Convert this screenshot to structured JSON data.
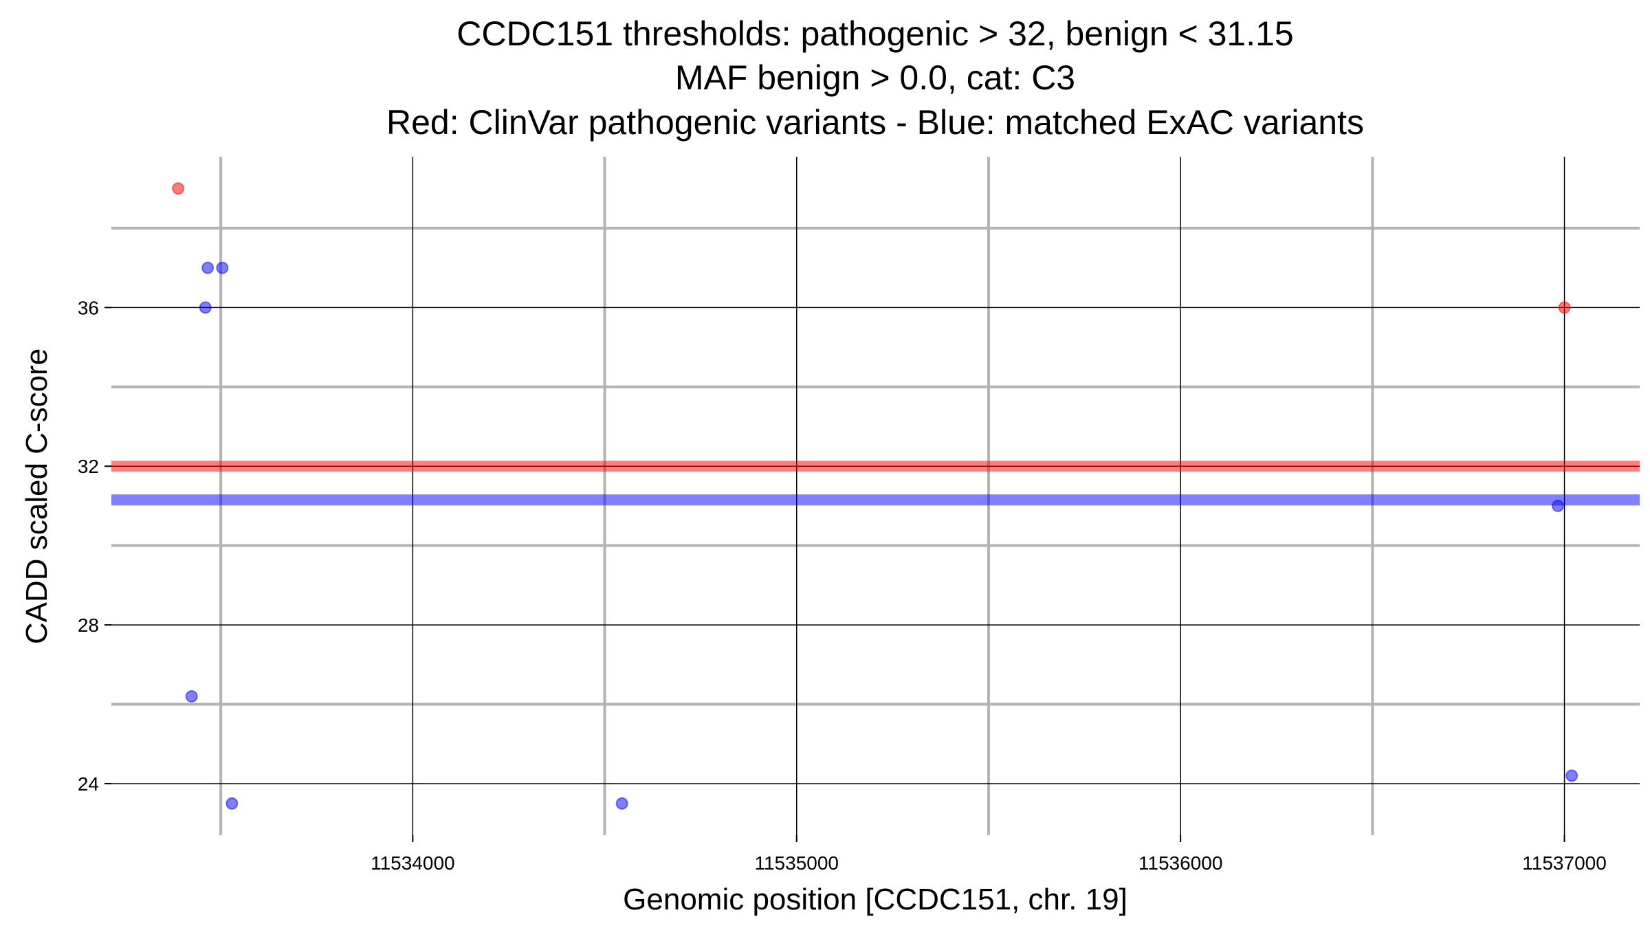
{
  "chart_data": {
    "type": "scatter",
    "title": [
      "CCDC151 thresholds: pathogenic > 32, benign < 31.15",
      "MAF benign > 0.0, cat: C3",
      "Red: ClinVar pathogenic variants - Blue: matched ExAC variants"
    ],
    "xlabel": "Genomic position [CCDC151, chr. 19]",
    "ylabel": "CADD scaled C-score",
    "xlim": [
      11533215,
      11537196
    ],
    "ylim": [
      22.7,
      39.8
    ],
    "x_ticks": [
      11534000,
      11535000,
      11536000,
      11537000
    ],
    "x_tick_labels": [
      "11534000",
      "11535000",
      "11536000",
      "11537000"
    ],
    "x_minor": [
      11533500,
      11534500,
      11535500,
      11536500
    ],
    "y_ticks": [
      24,
      28,
      32,
      36
    ],
    "y_tick_labels": [
      "24",
      "28",
      "32",
      "36"
    ],
    "y_minor": [
      26,
      30,
      34,
      38
    ],
    "grid": true,
    "thresholds": [
      {
        "name": "pathogenic",
        "value": 32,
        "color": "#ff0000"
      },
      {
        "name": "benign",
        "value": 31.15,
        "color": "#0000ff"
      }
    ],
    "series": [
      {
        "name": "ClinVar pathogenic",
        "color": "#ff0000",
        "points": [
          [
            11533389,
            39.0
          ],
          [
            11537000,
            36.0
          ]
        ]
      },
      {
        "name": "matched ExAC",
        "color": "#0000ff",
        "points": [
          [
            11533466,
            37.0
          ],
          [
            11533504,
            37.0
          ],
          [
            11533460,
            36.0
          ],
          [
            11533424,
            26.2
          ],
          [
            11533529,
            23.5
          ],
          [
            11534545,
            23.5
          ],
          [
            11536983,
            31.0
          ],
          [
            11537019,
            24.2
          ]
        ]
      }
    ]
  }
}
